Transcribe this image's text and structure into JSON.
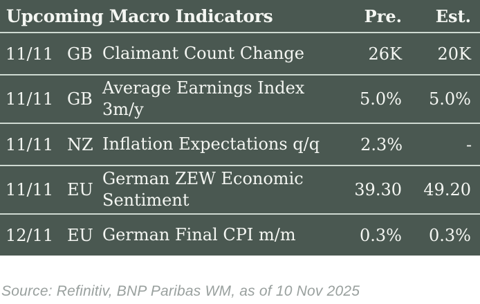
{
  "table": {
    "title": "Upcoming Macro Indicators",
    "columns": {
      "pre": "Pre.",
      "est": "Est."
    },
    "rows": [
      {
        "date": "11/11",
        "country": "GB",
        "indicator": [
          "Claimant Count Change"
        ],
        "pre": "26K",
        "est": "20K"
      },
      {
        "date": "11/11",
        "country": "GB",
        "indicator": [
          "Average Earnings Index",
          "3m/y"
        ],
        "pre": "5.0%",
        "est": "5.0%"
      },
      {
        "date": "11/11",
        "country": "NZ",
        "indicator": [
          "Inflation Expectations q/q"
        ],
        "pre": "2.3%",
        "est": "-"
      },
      {
        "date": "11/11",
        "country": "EU",
        "indicator": [
          "German ZEW Economic",
          "Sentiment"
        ],
        "pre": "39.30",
        "est": "49.20"
      },
      {
        "date": "12/11",
        "country": "EU",
        "indicator": [
          "German Final CPI m/m"
        ],
        "pre": "0.3%",
        "est": "0.3%"
      }
    ]
  },
  "source": "Source: Refinitiv, BNP Paribas WM, as of 10 Nov 2025",
  "colors": {
    "table_bg": "#4A5851",
    "row_divider": "#CFDAD2",
    "text": "#F4F6F2",
    "source_text": "#99A09E",
    "page_bg": "#FFFFFF"
  }
}
